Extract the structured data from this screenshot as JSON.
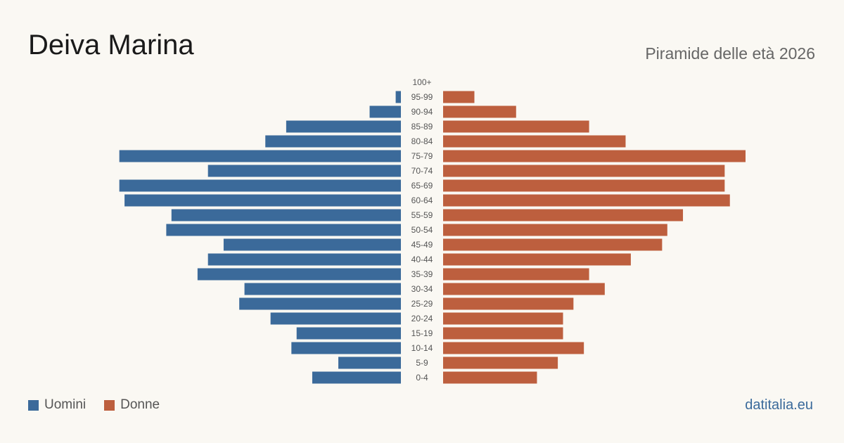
{
  "header": {
    "title": "Deiva Marina",
    "subtitle": "Piramide delle età 2026"
  },
  "legend": {
    "men_label": "Uomini",
    "women_label": "Donne"
  },
  "brand": "datitalia.eu",
  "colors": {
    "men": "#3b6a9a",
    "women": "#bd5f3e",
    "background": "#faf8f3"
  },
  "chart_data": {
    "type": "bar",
    "orientation": "horizontal-pyramid",
    "categories": [
      "100+",
      "95-99",
      "90-94",
      "85-89",
      "80-84",
      "75-79",
      "70-74",
      "65-69",
      "60-64",
      "55-59",
      "50-54",
      "45-49",
      "40-44",
      "35-39",
      "30-34",
      "25-29",
      "20-24",
      "15-19",
      "10-14",
      "5-9",
      "0-4"
    ],
    "series": [
      {
        "name": "Uomini",
        "values": [
          0,
          1,
          6,
          22,
          26,
          54,
          37,
          54,
          53,
          44,
          45,
          34,
          37,
          39,
          30,
          31,
          25,
          20,
          21,
          12,
          17
        ]
      },
      {
        "name": "Donne",
        "values": [
          0,
          6,
          14,
          28,
          35,
          58,
          54,
          54,
          55,
          46,
          43,
          42,
          36,
          28,
          31,
          25,
          23,
          23,
          27,
          22,
          18
        ]
      }
    ],
    "legend_position": "bottom-left",
    "grid": false
  }
}
